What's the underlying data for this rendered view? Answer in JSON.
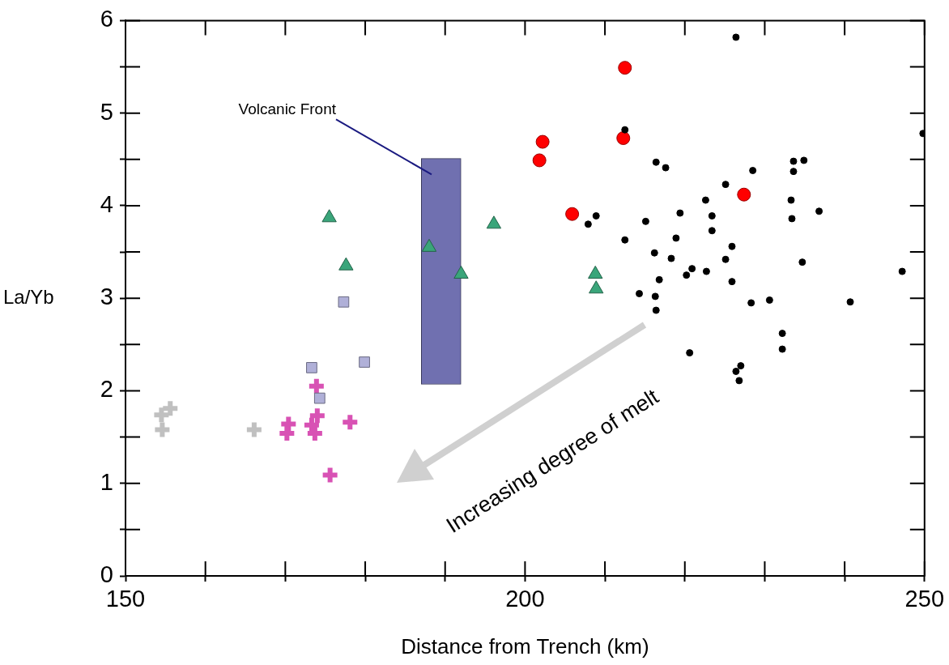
{
  "chart_data": {
    "type": "scatter",
    "xlabel": "Distance from Trench (km)",
    "ylabel": "La/Yb",
    "xlim": [
      150,
      250
    ],
    "ylim": [
      0,
      6
    ],
    "xticks": [
      150,
      {
        "value": 160,
        "label": null
      },
      {
        "value": 170,
        "label": null
      },
      {
        "value": 180,
        "label": null
      },
      {
        "value": 190,
        "label": null
      },
      200,
      {
        "value": 210,
        "label": null
      },
      {
        "value": 220,
        "label": null
      },
      {
        "value": 230,
        "label": null
      },
      {
        "value": 240,
        "label": null
      },
      250
    ],
    "yticks": [
      0,
      {
        "value": 0.5,
        "label": null
      },
      1,
      {
        "value": 1.5,
        "label": null
      },
      2,
      {
        "value": 2.5,
        "label": null
      },
      3,
      {
        "value": 3.5,
        "label": null
      },
      4,
      {
        "value": 4.5,
        "label": null
      },
      5,
      {
        "value": 5.5,
        "label": null
      },
      6
    ],
    "grid": false,
    "legend": false,
    "annotations": [
      "Volcanic Front",
      "Increasing degree of melt"
    ],
    "series": [
      {
        "type": "bar",
        "color": "#7070b0",
        "x": [
          189.5
        ],
        "base": [
          2.07
        ],
        "values": [
          2.44
        ]
      },
      {
        "color": "#000000",
        "marker": "circle",
        "x": [
          226.4,
          212.5,
          249.8,
          216.4,
          217.6,
          233.6,
          234.9,
          233.6,
          228.5,
          225.1,
          222.6,
          233.3,
          219.4,
          223.4,
          236.8,
          215.1,
          233.4,
          223.4,
          212.5,
          218.9,
          225.9,
          216.2,
          218.3,
          225.1,
          234.7,
          247.2,
          220.9,
          220.2,
          222.7,
          216.8,
          225.9,
          214.3,
          216.3,
          216.4,
          228.3,
          230.6,
          240.7,
          232.2,
          232.2,
          220.6,
          227.0,
          226.4,
          226.8,
          208.9,
          207.9
        ],
        "values": [
          5.82,
          4.82,
          4.78,
          4.47,
          4.41,
          4.48,
          4.49,
          4.37,
          4.38,
          4.23,
          4.06,
          4.06,
          3.92,
          3.89,
          3.94,
          3.83,
          3.86,
          3.73,
          3.63,
          3.65,
          3.56,
          3.49,
          3.43,
          3.42,
          3.39,
          3.29,
          3.32,
          3.25,
          3.29,
          3.2,
          3.18,
          3.05,
          3.02,
          2.87,
          2.95,
          2.98,
          2.96,
          2.62,
          2.45,
          2.41,
          2.27,
          2.21,
          2.11,
          3.89,
          3.8
        ]
      },
      {
        "color": "#ff0000",
        "marker": "circle",
        "x": [
          202.2,
          201.8,
          205.9,
          212.5,
          212.3,
          227.4
        ],
        "values": [
          4.69,
          4.49,
          3.91,
          5.49,
          4.73,
          4.12
        ]
      },
      {
        "color": "#3aa57a",
        "marker": "triangle",
        "x": [
          196.1,
          188.0,
          192.0,
          208.8,
          208.9,
          175.5,
          177.6
        ],
        "values": [
          3.8,
          3.55,
          3.26,
          3.26,
          3.1,
          3.87,
          3.35
        ]
      },
      {
        "color": "#b0b0d8",
        "marker": "square",
        "x": [
          177.3,
          173.3,
          179.9,
          174.3
        ],
        "values": [
          2.96,
          2.25,
          2.31,
          1.92
        ]
      },
      {
        "color": "#d852b4",
        "marker": "cross",
        "x": [
          173.9,
          174.0,
          170.4,
          173.3,
          170.2,
          173.7,
          178.1,
          175.6
        ],
        "values": [
          2.05,
          1.73,
          1.64,
          1.63,
          1.54,
          1.54,
          1.66,
          1.09
        ]
      },
      {
        "color": "#c0c0c0",
        "marker": "cross",
        "x": [
          155.6,
          154.5,
          154.6,
          166.1
        ],
        "values": [
          1.81,
          1.74,
          1.58,
          1.58
        ]
      }
    ]
  }
}
